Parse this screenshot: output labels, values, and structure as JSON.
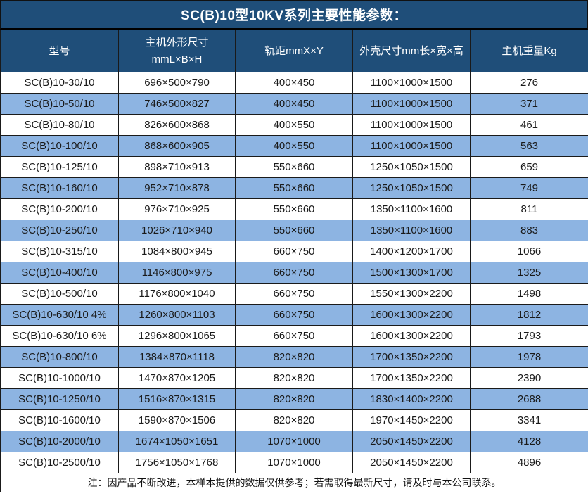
{
  "title": "SC(B)10型10KV系列主要性能参数：",
  "colors": {
    "header_bg": "#1F4E79",
    "stripe_bg": "#8DB4E2",
    "header_text": "#FFFFFF",
    "body_text": "#1A1A1A",
    "border": "#1A1A1A"
  },
  "table": {
    "columns": [
      {
        "label": "型号"
      },
      {
        "label": "主机外形尺寸",
        "sub": "mmL×B×H"
      },
      {
        "label": "轨距mmX×Y"
      },
      {
        "label": "外壳尺寸mm长×宽×高"
      },
      {
        "label": "主机重量Kg"
      }
    ],
    "rows": [
      [
        "SC(B)10-30/10",
        "696×500×790",
        "400×450",
        "1100×1000×1500",
        "276"
      ],
      [
        "SC(B)10-50/10",
        "746×500×827",
        "400×450",
        "1100×1000×1500",
        "371"
      ],
      [
        "SC(B)10-80/10",
        "826×600×868",
        "400×550",
        "1100×1000×1500",
        "461"
      ],
      [
        "SC(B)10-100/10",
        "868×600×905",
        "400×550",
        "1100×1000×1500",
        "563"
      ],
      [
        "SC(B)10-125/10",
        "898×710×913",
        "550×660",
        "1250×1050×1500",
        "659"
      ],
      [
        "SC(B)10-160/10",
        "952×710×878",
        "550×660",
        "1250×1050×1500",
        "749"
      ],
      [
        "SC(B)10-200/10",
        "976×710×925",
        "550×660",
        "1350×1100×1600",
        "811"
      ],
      [
        "SC(B)10-250/10",
        "1026×710×940",
        "550×660",
        "1350×1100×1600",
        "883"
      ],
      [
        "SC(B)10-315/10",
        "1084×800×945",
        "660×750",
        "1400×1200×1700",
        "1066"
      ],
      [
        "SC(B)10-400/10",
        "1146×800×975",
        "660×750",
        "1500×1300×1700",
        "1325"
      ],
      [
        "SC(B)10-500/10",
        "1176×800×1040",
        "660×750",
        "1550×1300×2200",
        "1498"
      ],
      [
        "SC(B)10-630/10 4%",
        "1260×800×1103",
        "660×750",
        "1600×1300×2200",
        "1812"
      ],
      [
        "SC(B)10-630/10 6%",
        "1296×800×1065",
        "660×750",
        "1600×1300×2200",
        "1793"
      ],
      [
        "SC(B)10-800/10",
        "1384×870×1118",
        "820×820",
        "1700×1350×2200",
        "1978"
      ],
      [
        "SC(B)10-1000/10",
        "1470×870×1205",
        "820×820",
        "1700×1350×2200",
        "2390"
      ],
      [
        "SC(B)10-1250/10",
        "1516×870×1315",
        "820×820",
        "1830×1400×2200",
        "2688"
      ],
      [
        "SC(B)10-1600/10",
        "1590×870×1506",
        "820×820",
        "1970×1450×2200",
        "3341"
      ],
      [
        "SC(B)10-2000/10",
        "1674×1050×1651",
        "1070×1000",
        "2050×1450×2200",
        "4128"
      ],
      [
        "SC(B)10-2500/10",
        "1756×1050×1768",
        "1070×1000",
        "2050×1450×2200",
        "4896"
      ]
    ]
  },
  "note": "注：因产品不断改进，本样本提供的数据仅供参考；若需取得最新尺寸，请及时与本公司联系。"
}
